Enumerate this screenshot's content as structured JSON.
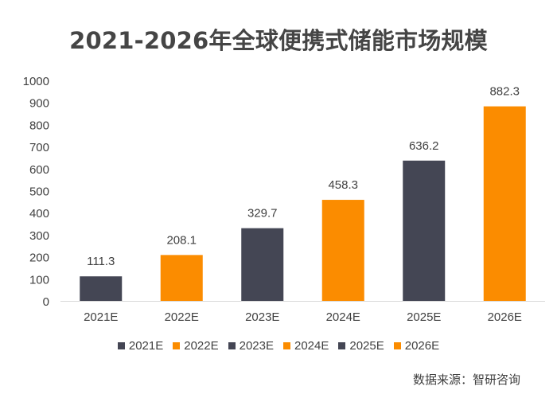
{
  "chart_data": {
    "type": "bar",
    "title": "2021-2026年全球便携式储能市场规模",
    "categories": [
      "2021E",
      "2022E",
      "2023E",
      "2024E",
      "2025E",
      "2026E"
    ],
    "values": [
      111.3,
      208.1,
      329.7,
      458.3,
      636.2,
      882.3
    ],
    "value_labels": [
      "111.3",
      "208.1",
      "329.7",
      "458.3",
      "636.2",
      "882.3"
    ],
    "bar_colors": [
      "#444654",
      "#fb8c00",
      "#444654",
      "#fb8c00",
      "#444654",
      "#fb8c00"
    ],
    "ylim": [
      0,
      1000
    ],
    "yticks": [
      0,
      100,
      200,
      300,
      400,
      500,
      600,
      700,
      800,
      900,
      1000
    ],
    "grid": false,
    "legend_position": "bottom"
  },
  "source": "数据来源：智研咨询"
}
